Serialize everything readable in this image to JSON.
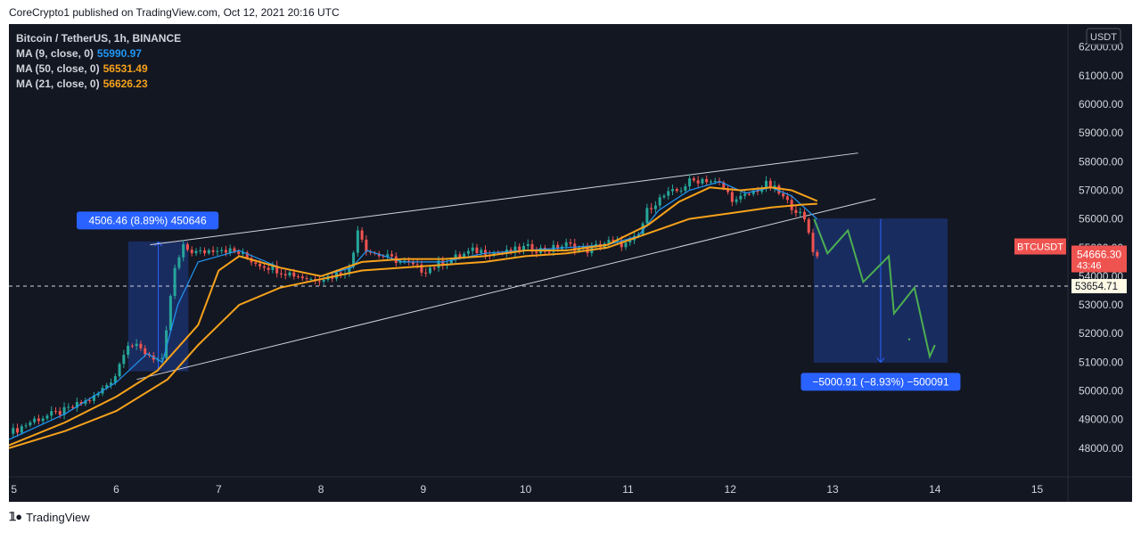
{
  "header": {
    "text": "CoreCrypto1 published on TradingView.com, Oct 12, 2021 20:16 UTC"
  },
  "footer": {
    "brand": "TradingView"
  },
  "legend": {
    "title": "Bitcoin / TetherUS, 1h, BINANCE",
    "indicators": [
      {
        "label": "MA (9, close, 0)",
        "value": "55990.97",
        "color": "#2196f3"
      },
      {
        "label": "MA (50, close, 0)",
        "value": "56531.49",
        "color": "#f7a21b"
      },
      {
        "label": "MA (21, close, 0)",
        "value": "56626.23",
        "color": "#f7a21b"
      }
    ]
  },
  "colors": {
    "background": "#131722",
    "up": "#26a69a",
    "down": "#ef5350",
    "ma9": "#2196f3",
    "ma_orange": "#f7a21b",
    "projection": "#4caf50",
    "measure_box": "#2962ff"
  },
  "chart_data": {
    "type": "candlestick",
    "symbol": "BTCUSDT",
    "currency": "USDT",
    "x_ticks": [
      "5",
      "6",
      "7",
      "8",
      "9",
      "10",
      "11",
      "12",
      "13",
      "14",
      "15"
    ],
    "y_ticks": [
      "48000.00",
      "49000.00",
      "50000.00",
      "51000.00",
      "52000.00",
      "53000.00",
      "54000.00",
      "55000.00",
      "56000.00",
      "57000.00",
      "58000.00",
      "59000.00",
      "60000.00",
      "61000.00",
      "62000.00"
    ],
    "ylim": [
      47000,
      62800
    ],
    "xlim": [
      4.95,
      15.3
    ],
    "close_series": [
      [
        4.95,
        48500
      ],
      [
        5.2,
        49000
      ],
      [
        5.5,
        49300
      ],
      [
        5.8,
        49800
      ],
      [
        6.0,
        50600
      ],
      [
        6.1,
        51700
      ],
      [
        6.25,
        51400
      ],
      [
        6.35,
        51200
      ],
      [
        6.45,
        51000
      ],
      [
        6.5,
        52300
      ],
      [
        6.55,
        54000
      ],
      [
        6.65,
        55000
      ],
      [
        6.8,
        54800
      ],
      [
        7.0,
        55000
      ],
      [
        7.2,
        54800
      ],
      [
        7.35,
        54500
      ],
      [
        7.6,
        54200
      ],
      [
        7.9,
        53900
      ],
      [
        8.1,
        54000
      ],
      [
        8.3,
        54300
      ],
      [
        8.35,
        55800
      ],
      [
        8.45,
        54900
      ],
      [
        8.6,
        54700
      ],
      [
        8.8,
        54500
      ],
      [
        9.0,
        54200
      ],
      [
        9.2,
        54500
      ],
      [
        9.5,
        54900
      ],
      [
        9.8,
        54800
      ],
      [
        10.0,
        55000
      ],
      [
        10.2,
        54900
      ],
      [
        10.4,
        55100
      ],
      [
        10.6,
        54900
      ],
      [
        10.8,
        55200
      ],
      [
        11.0,
        55100
      ],
      [
        11.1,
        55400
      ],
      [
        11.2,
        56400
      ],
      [
        11.35,
        56800
      ],
      [
        11.5,
        57000
      ],
      [
        11.6,
        57300
      ],
      [
        11.75,
        57400
      ],
      [
        11.9,
        57200
      ],
      [
        12.05,
        56600
      ],
      [
        12.2,
        56900
      ],
      [
        12.35,
        57200
      ],
      [
        12.45,
        57000
      ],
      [
        12.55,
        56600
      ],
      [
        12.65,
        56300
      ],
      [
        12.75,
        55800
      ],
      [
        12.8,
        55000
      ],
      [
        12.85,
        54666
      ]
    ],
    "series": [
      {
        "name": "MA (9, close, 0)",
        "last": 55990.97,
        "points": [
          [
            4.95,
            48300
          ],
          [
            5.5,
            49200
          ],
          [
            6.0,
            50300
          ],
          [
            6.3,
            51300
          ],
          [
            6.45,
            51000
          ],
          [
            6.6,
            53000
          ],
          [
            6.8,
            54500
          ],
          [
            7.2,
            54900
          ],
          [
            7.6,
            54300
          ],
          [
            8.0,
            54000
          ],
          [
            8.3,
            54300
          ],
          [
            8.45,
            54900
          ],
          [
            8.8,
            54500
          ],
          [
            9.2,
            54500
          ],
          [
            9.6,
            54800
          ],
          [
            10.0,
            54900
          ],
          [
            10.4,
            55000
          ],
          [
            10.8,
            55100
          ],
          [
            11.1,
            55400
          ],
          [
            11.3,
            56300
          ],
          [
            11.6,
            57000
          ],
          [
            11.9,
            57300
          ],
          [
            12.15,
            56900
          ],
          [
            12.4,
            57100
          ],
          [
            12.6,
            56800
          ],
          [
            12.85,
            55990
          ]
        ]
      },
      {
        "name": "MA (50, close, 0)",
        "last": 56531.49,
        "points": [
          [
            4.95,
            48000
          ],
          [
            5.5,
            48600
          ],
          [
            6.0,
            49300
          ],
          [
            6.5,
            50400
          ],
          [
            6.8,
            51600
          ],
          [
            7.2,
            53000
          ],
          [
            7.6,
            53600
          ],
          [
            8.0,
            53900
          ],
          [
            8.4,
            54200
          ],
          [
            8.8,
            54300
          ],
          [
            9.2,
            54400
          ],
          [
            9.6,
            54500
          ],
          [
            10.0,
            54700
          ],
          [
            10.4,
            54800
          ],
          [
            10.8,
            55000
          ],
          [
            11.2,
            55500
          ],
          [
            11.6,
            56000
          ],
          [
            12.0,
            56200
          ],
          [
            12.4,
            56400
          ],
          [
            12.7,
            56500
          ],
          [
            12.85,
            56531
          ]
        ]
      },
      {
        "name": "MA (21, close, 0)",
        "last": 56626.23,
        "points": [
          [
            4.95,
            48100
          ],
          [
            5.5,
            48900
          ],
          [
            6.0,
            49800
          ],
          [
            6.4,
            50700
          ],
          [
            6.8,
            52300
          ],
          [
            7.0,
            54200
          ],
          [
            7.2,
            54700
          ],
          [
            7.6,
            54300
          ],
          [
            8.0,
            54000
          ],
          [
            8.4,
            54500
          ],
          [
            8.8,
            54600
          ],
          [
            9.2,
            54600
          ],
          [
            9.6,
            54700
          ],
          [
            10.0,
            54900
          ],
          [
            10.4,
            54900
          ],
          [
            10.8,
            55100
          ],
          [
            11.2,
            55800
          ],
          [
            11.5,
            56600
          ],
          [
            11.8,
            57100
          ],
          [
            12.1,
            57000
          ],
          [
            12.4,
            57100
          ],
          [
            12.6,
            57000
          ],
          [
            12.85,
            56626
          ]
        ]
      }
    ],
    "wedge_lines": [
      {
        "from": [
          6.33,
          55100
        ],
        "to": [
          13.25,
          58300
        ]
      },
      {
        "from": [
          6.2,
          50400
        ],
        "to": [
          13.42,
          56700
        ]
      }
    ],
    "measure_up": {
      "label": "4506.46 (8.89%) 450646",
      "from": [
        6.12,
        50700
      ],
      "to": [
        6.7,
        55200
      ]
    },
    "measure_down": {
      "label": "−5000.91 (−8.93%) −500091",
      "from": [
        12.82,
        56000
      ],
      "to": [
        14.12,
        51000
      ]
    },
    "projection": [
      [
        12.82,
        56000
      ],
      [
        12.95,
        54800
      ],
      [
        13.15,
        55600
      ],
      [
        13.3,
        53800
      ],
      [
        13.55,
        54700
      ],
      [
        13.6,
        52700
      ],
      [
        13.8,
        53600
      ],
      [
        13.95,
        51200
      ],
      [
        14.0,
        51600
      ]
    ],
    "projection_dot": [
      13.75,
      51800
    ],
    "dashed_level": 53654.71,
    "last_price": {
      "symbol": "BTCUSDT",
      "value": "54666.30",
      "countdown": "43:46"
    },
    "level_label": "53654.71"
  }
}
